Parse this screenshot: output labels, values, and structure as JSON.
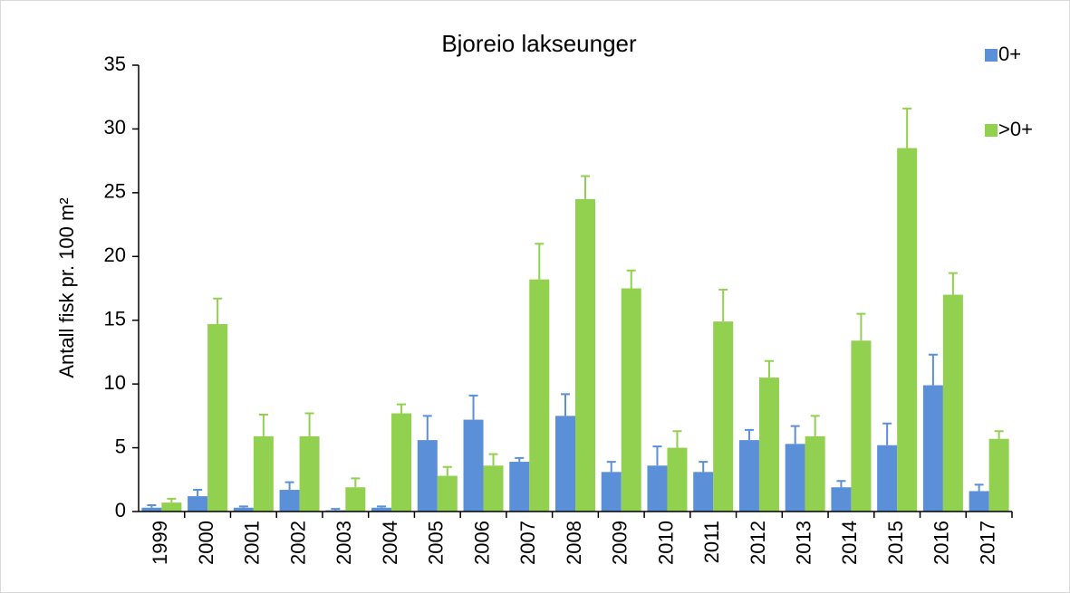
{
  "chart_data": {
    "type": "bar",
    "title": "Bjoreio lakseunger",
    "y_label": "Antall fisk pr. 100 m²",
    "categories": [
      "1999",
      "2000",
      "2001",
      "2002",
      "2003",
      "2004",
      "2005",
      "2006",
      "2007",
      "2008",
      "2009",
      "2010",
      "2011",
      "2012",
      "2013",
      "2014",
      "2015",
      "2016",
      "2017"
    ],
    "series": [
      {
        "name": "0+",
        "color": "#5b8fd8",
        "values": [
          0.3,
          1.2,
          0.3,
          1.7,
          0.1,
          0.3,
          5.6,
          7.2,
          3.9,
          7.5,
          3.1,
          3.6,
          3.1,
          5.6,
          5.3,
          1.9,
          5.2,
          9.9,
          1.6
        ],
        "errors": [
          0.2,
          0.5,
          0.1,
          0.6,
          0.1,
          0.1,
          1.9,
          1.9,
          0.3,
          1.7,
          0.8,
          1.5,
          0.8,
          0.8,
          1.4,
          0.5,
          1.7,
          2.4,
          0.5
        ]
      },
      {
        "name": ">0+",
        "color": "#92d050",
        "values": [
          0.7,
          14.7,
          5.9,
          5.9,
          1.9,
          7.7,
          2.8,
          3.6,
          18.2,
          24.5,
          17.5,
          5.0,
          14.9,
          10.5,
          5.9,
          13.4,
          28.5,
          17.0,
          5.7
        ],
        "errors": [
          0.3,
          2.0,
          1.7,
          1.8,
          0.7,
          0.7,
          0.7,
          0.9,
          2.8,
          1.8,
          1.4,
          1.3,
          2.5,
          1.3,
          1.6,
          2.1,
          3.1,
          1.7,
          0.6
        ]
      }
    ],
    "ylim": [
      0,
      35
    ],
    "yticks": [
      0,
      5,
      10,
      15,
      20,
      25,
      30,
      35
    ],
    "legend": "right"
  }
}
